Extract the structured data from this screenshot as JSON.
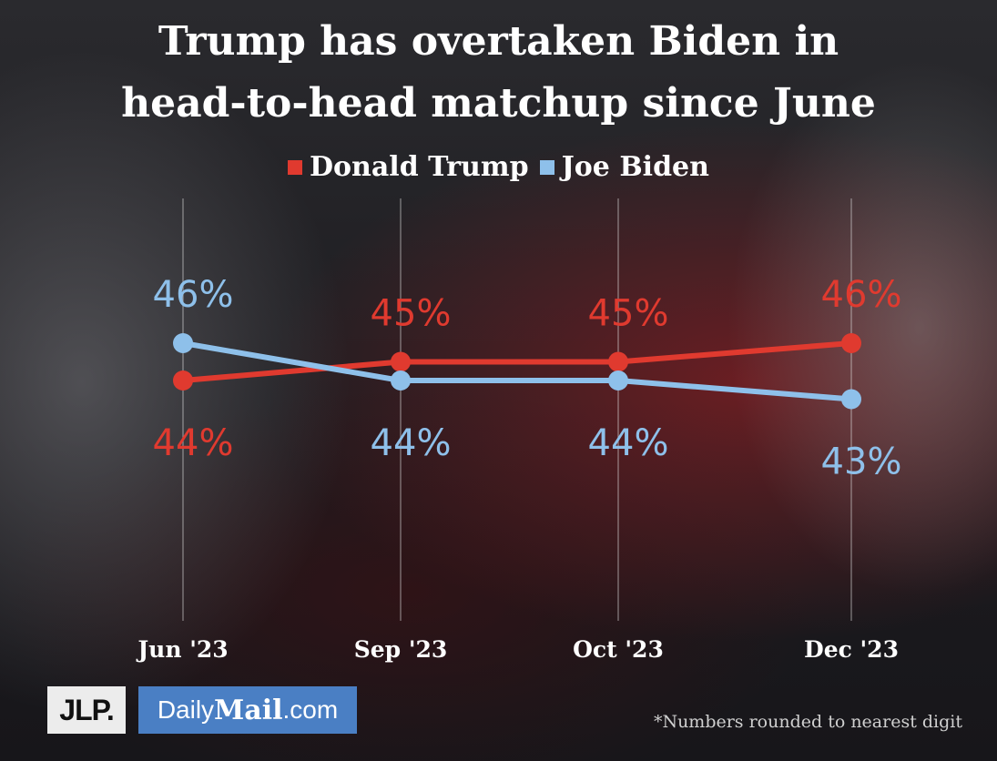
{
  "chart_data": {
    "type": "line",
    "title": "Trump has overtaken Biden in head-to-head matchup since June",
    "title_lines": [
      "Trump has overtaken Biden in",
      "head-to-head matchup since June"
    ],
    "categories": [
      "Jun '23",
      "Sep '23",
      "Oct '23",
      "Dec '23"
    ],
    "series": [
      {
        "name": "Donald Trump",
        "color": "#e03a2f",
        "values": [
          44,
          45,
          45,
          46
        ],
        "labels": [
          "44%",
          "45%",
          "45%",
          "46%"
        ]
      },
      {
        "name": "Joe Biden",
        "color": "#8ec0ea",
        "values": [
          46,
          44,
          44,
          43
        ],
        "labels": [
          "46%",
          "44%",
          "44%",
          "43%"
        ]
      }
    ],
    "grid": "vertical",
    "legend": "top-center",
    "footnote": "*Numbers rounded to nearest digit"
  },
  "logos": {
    "jlp": "JLP.",
    "dailymail_prefix": "Daily",
    "dailymail_mail": "Mail",
    "dailymail_suffix": ".com"
  }
}
